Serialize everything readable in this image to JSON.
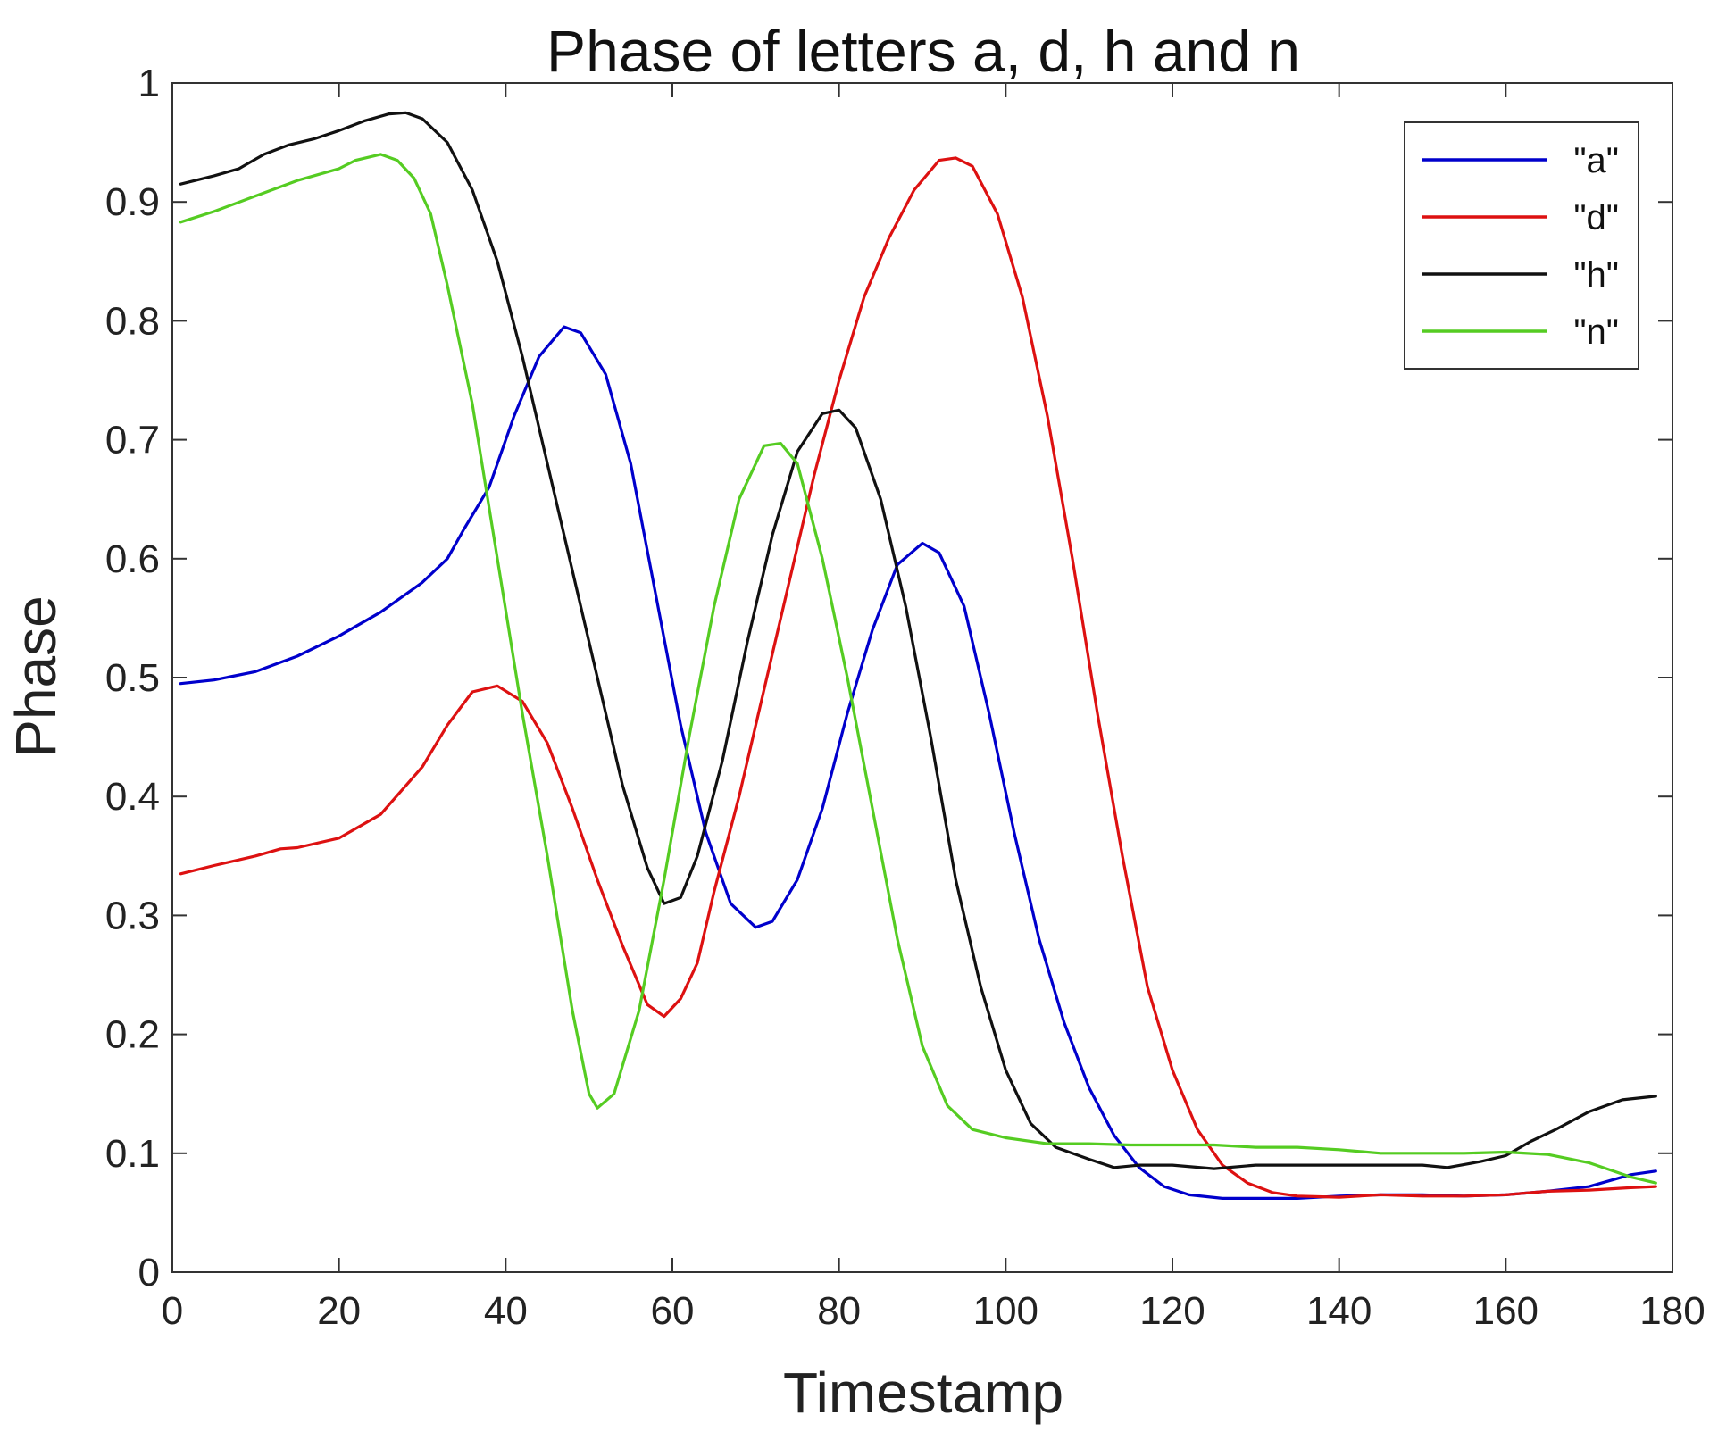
{
  "chart_data": {
    "type": "line",
    "title": "Phase of letters a, d, h and n",
    "xlabel": "Timestamp",
    "ylabel": "Phase",
    "xlim": [
      0,
      180
    ],
    "ylim": [
      0,
      1
    ],
    "xticks": [
      0,
      20,
      40,
      60,
      80,
      100,
      120,
      140,
      160,
      180
    ],
    "yticks": [
      0,
      0.1,
      0.2,
      0.3,
      0.4,
      0.5,
      0.6,
      0.7,
      0.8,
      0.9,
      1
    ],
    "xtick_labels": [
      "0",
      "20",
      "40",
      "60",
      "80",
      "100",
      "120",
      "140",
      "160",
      "180"
    ],
    "ytick_labels": [
      "0",
      "0.1",
      "0.2",
      "0.3",
      "0.4",
      "0.5",
      "0.6",
      "0.7",
      "0.8",
      "0.9",
      "1"
    ],
    "grid": false,
    "legend_position": "top-right",
    "series": [
      {
        "name": "\"a\"",
        "color": "#0000cc",
        "points": [
          [
            1,
            0.495
          ],
          [
            5,
            0.498
          ],
          [
            10,
            0.505
          ],
          [
            15,
            0.518
          ],
          [
            20,
            0.535
          ],
          [
            25,
            0.555
          ],
          [
            30,
            0.58
          ],
          [
            33,
            0.6
          ],
          [
            35,
            0.625
          ],
          [
            38,
            0.66
          ],
          [
            41,
            0.72
          ],
          [
            44,
            0.77
          ],
          [
            47,
            0.795
          ],
          [
            49,
            0.79
          ],
          [
            52,
            0.755
          ],
          [
            55,
            0.68
          ],
          [
            58,
            0.57
          ],
          [
            61,
            0.46
          ],
          [
            64,
            0.37
          ],
          [
            67,
            0.31
          ],
          [
            70,
            0.29
          ],
          [
            72,
            0.295
          ],
          [
            75,
            0.33
          ],
          [
            78,
            0.39
          ],
          [
            81,
            0.47
          ],
          [
            84,
            0.54
          ],
          [
            87,
            0.595
          ],
          [
            90,
            0.613
          ],
          [
            92,
            0.605
          ],
          [
            95,
            0.56
          ],
          [
            98,
            0.47
          ],
          [
            101,
            0.37
          ],
          [
            104,
            0.28
          ],
          [
            107,
            0.21
          ],
          [
            110,
            0.155
          ],
          [
            113,
            0.115
          ],
          [
            116,
            0.088
          ],
          [
            119,
            0.072
          ],
          [
            122,
            0.065
          ],
          [
            126,
            0.062
          ],
          [
            130,
            0.062
          ],
          [
            135,
            0.062
          ],
          [
            140,
            0.064
          ],
          [
            145,
            0.065
          ],
          [
            150,
            0.065
          ],
          [
            155,
            0.064
          ],
          [
            160,
            0.065
          ],
          [
            165,
            0.068
          ],
          [
            170,
            0.072
          ],
          [
            175,
            0.082
          ],
          [
            178,
            0.085
          ]
        ]
      },
      {
        "name": "\"d\"",
        "color": "#dd1111",
        "points": [
          [
            1,
            0.335
          ],
          [
            5,
            0.342
          ],
          [
            10,
            0.35
          ],
          [
            13,
            0.356
          ],
          [
            15,
            0.357
          ],
          [
            20,
            0.365
          ],
          [
            25,
            0.385
          ],
          [
            30,
            0.425
          ],
          [
            33,
            0.46
          ],
          [
            36,
            0.488
          ],
          [
            39,
            0.493
          ],
          [
            42,
            0.48
          ],
          [
            45,
            0.445
          ],
          [
            48,
            0.39
          ],
          [
            51,
            0.33
          ],
          [
            54,
            0.275
          ],
          [
            57,
            0.225
          ],
          [
            59,
            0.215
          ],
          [
            61,
            0.23
          ],
          [
            63,
            0.26
          ],
          [
            65,
            0.32
          ],
          [
            68,
            0.4
          ],
          [
            71,
            0.49
          ],
          [
            74,
            0.58
          ],
          [
            77,
            0.67
          ],
          [
            80,
            0.75
          ],
          [
            83,
            0.82
          ],
          [
            86,
            0.87
          ],
          [
            89,
            0.91
          ],
          [
            92,
            0.935
          ],
          [
            94,
            0.937
          ],
          [
            96,
            0.93
          ],
          [
            99,
            0.89
          ],
          [
            102,
            0.82
          ],
          [
            105,
            0.72
          ],
          [
            108,
            0.6
          ],
          [
            111,
            0.47
          ],
          [
            114,
            0.35
          ],
          [
            117,
            0.24
          ],
          [
            120,
            0.17
          ],
          [
            123,
            0.12
          ],
          [
            126,
            0.09
          ],
          [
            129,
            0.075
          ],
          [
            132,
            0.067
          ],
          [
            135,
            0.064
          ],
          [
            140,
            0.063
          ],
          [
            145,
            0.065
          ],
          [
            150,
            0.064
          ],
          [
            155,
            0.064
          ],
          [
            160,
            0.065
          ],
          [
            165,
            0.068
          ],
          [
            170,
            0.069
          ],
          [
            175,
            0.071
          ],
          [
            178,
            0.072
          ]
        ]
      },
      {
        "name": "\"h\"",
        "color": "#111111",
        "points": [
          [
            1,
            0.915
          ],
          [
            5,
            0.922
          ],
          [
            8,
            0.928
          ],
          [
            11,
            0.94
          ],
          [
            14,
            0.948
          ],
          [
            17,
            0.953
          ],
          [
            20,
            0.96
          ],
          [
            23,
            0.968
          ],
          [
            26,
            0.974
          ],
          [
            28,
            0.975
          ],
          [
            30,
            0.97
          ],
          [
            33,
            0.95
          ],
          [
            36,
            0.91
          ],
          [
            39,
            0.85
          ],
          [
            42,
            0.77
          ],
          [
            45,
            0.68
          ],
          [
            48,
            0.59
          ],
          [
            51,
            0.5
          ],
          [
            54,
            0.41
          ],
          [
            57,
            0.34
          ],
          [
            59,
            0.31
          ],
          [
            61,
            0.315
          ],
          [
            63,
            0.35
          ],
          [
            66,
            0.43
          ],
          [
            69,
            0.53
          ],
          [
            72,
            0.62
          ],
          [
            75,
            0.69
          ],
          [
            78,
            0.722
          ],
          [
            80,
            0.725
          ],
          [
            82,
            0.71
          ],
          [
            85,
            0.65
          ],
          [
            88,
            0.56
          ],
          [
            91,
            0.45
          ],
          [
            94,
            0.33
          ],
          [
            97,
            0.24
          ],
          [
            100,
            0.17
          ],
          [
            103,
            0.125
          ],
          [
            106,
            0.105
          ],
          [
            110,
            0.095
          ],
          [
            113,
            0.088
          ],
          [
            116,
            0.09
          ],
          [
            120,
            0.09
          ],
          [
            125,
            0.087
          ],
          [
            130,
            0.09
          ],
          [
            135,
            0.09
          ],
          [
            140,
            0.09
          ],
          [
            145,
            0.09
          ],
          [
            150,
            0.09
          ],
          [
            153,
            0.088
          ],
          [
            157,
            0.093
          ],
          [
            160,
            0.098
          ],
          [
            163,
            0.11
          ],
          [
            166,
            0.12
          ],
          [
            170,
            0.135
          ],
          [
            174,
            0.145
          ],
          [
            178,
            0.148
          ]
        ]
      },
      {
        "name": "\"n\"",
        "color": "#55cc22",
        "points": [
          [
            1,
            0.883
          ],
          [
            5,
            0.892
          ],
          [
            10,
            0.905
          ],
          [
            15,
            0.918
          ],
          [
            20,
            0.928
          ],
          [
            22,
            0.935
          ],
          [
            25,
            0.94
          ],
          [
            27,
            0.935
          ],
          [
            29,
            0.92
          ],
          [
            31,
            0.89
          ],
          [
            33,
            0.83
          ],
          [
            36,
            0.73
          ],
          [
            39,
            0.6
          ],
          [
            42,
            0.47
          ],
          [
            45,
            0.35
          ],
          [
            48,
            0.22
          ],
          [
            50,
            0.15
          ],
          [
            51,
            0.138
          ],
          [
            53,
            0.15
          ],
          [
            56,
            0.22
          ],
          [
            59,
            0.33
          ],
          [
            62,
            0.45
          ],
          [
            65,
            0.56
          ],
          [
            68,
            0.65
          ],
          [
            71,
            0.695
          ],
          [
            73,
            0.697
          ],
          [
            75,
            0.68
          ],
          [
            78,
            0.6
          ],
          [
            81,
            0.5
          ],
          [
            84,
            0.39
          ],
          [
            87,
            0.28
          ],
          [
            90,
            0.19
          ],
          [
            93,
            0.14
          ],
          [
            96,
            0.12
          ],
          [
            100,
            0.113
          ],
          [
            105,
            0.108
          ],
          [
            110,
            0.108
          ],
          [
            115,
            0.107
          ],
          [
            120,
            0.107
          ],
          [
            125,
            0.107
          ],
          [
            130,
            0.105
          ],
          [
            135,
            0.105
          ],
          [
            140,
            0.103
          ],
          [
            145,
            0.1
          ],
          [
            150,
            0.1
          ],
          [
            155,
            0.1
          ],
          [
            160,
            0.101
          ],
          [
            165,
            0.099
          ],
          [
            170,
            0.092
          ],
          [
            175,
            0.08
          ],
          [
            178,
            0.075
          ]
        ]
      }
    ]
  }
}
